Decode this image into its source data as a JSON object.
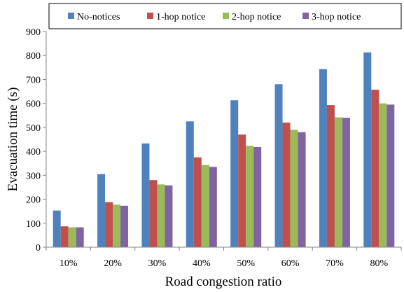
{
  "chart_data": {
    "type": "bar",
    "title": "",
    "xlabel": "Road congestion ratio",
    "ylabel": "Evacuation time (s)",
    "categories": [
      "10%",
      "20%",
      "30%",
      "40%",
      "50%",
      "60%",
      "70%",
      "80%"
    ],
    "ylim": [
      0,
      900
    ],
    "yticks": [
      0,
      100,
      200,
      300,
      400,
      500,
      600,
      700,
      800,
      900
    ],
    "grid": false,
    "legend_position": "top",
    "series": [
      {
        "name": "No-notices",
        "color": "#4F81BD",
        "values": [
          153,
          305,
          433,
          525,
          613,
          680,
          743,
          813
        ]
      },
      {
        "name": "1-hop notice",
        "color": "#C0504D",
        "values": [
          87,
          188,
          280,
          375,
          470,
          520,
          593,
          657
        ]
      },
      {
        "name": "2-hop notice",
        "color": "#9BBB59",
        "values": [
          83,
          177,
          262,
          343,
          423,
          490,
          542,
          600
        ]
      },
      {
        "name": "3-hop notice",
        "color": "#8064A2",
        "values": [
          83,
          173,
          258,
          335,
          418,
          480,
          540,
          595
        ]
      }
    ]
  }
}
